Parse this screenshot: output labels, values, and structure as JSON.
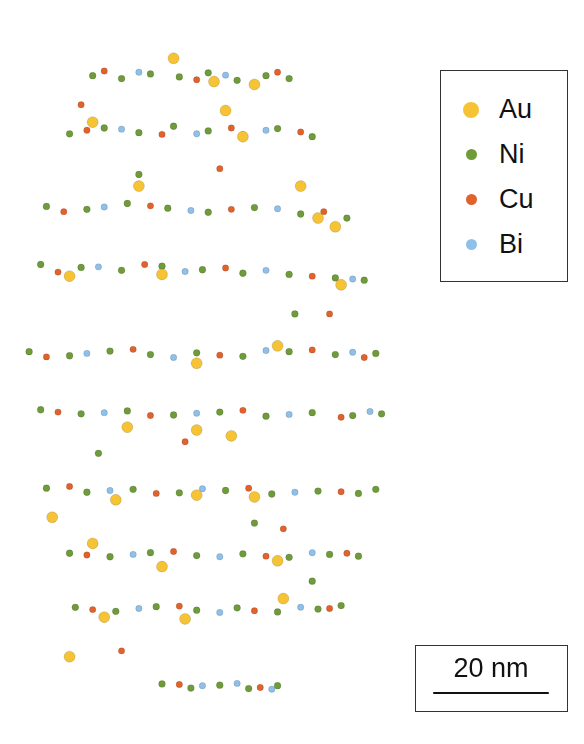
{
  "chart_data": {
    "type": "scatter",
    "xlim": [
      -3,
      96
    ],
    "ylim": [
      -7,
      119
    ],
    "grid": false,
    "tick_labels": false,
    "legend": "upper right",
    "scale_bar": {
      "length": 20,
      "label": "20 nm"
    },
    "series": [
      {
        "name": "Au",
        "color": "#f5c334",
        "values": [
          [
            26,
            110
          ],
          [
            33,
            106
          ],
          [
            40,
            105.5
          ],
          [
            12,
            99
          ],
          [
            38,
            96.5
          ],
          [
            35,
            101
          ],
          [
            20,
            88
          ],
          [
            48,
            88
          ],
          [
            51,
            82.5
          ],
          [
            54,
            81
          ],
          [
            8,
            72.5
          ],
          [
            24,
            72.8
          ],
          [
            55,
            71
          ],
          [
            44,
            60.5
          ],
          [
            30,
            57.5
          ],
          [
            18,
            46.5
          ],
          [
            30,
            46
          ],
          [
            36,
            45
          ],
          [
            16,
            34
          ],
          [
            30,
            34.8
          ],
          [
            40,
            34.5
          ],
          [
            5,
            31
          ],
          [
            12,
            26.5
          ],
          [
            24,
            22.5
          ],
          [
            44,
            23.5
          ],
          [
            14,
            13.8
          ],
          [
            28,
            13.5
          ],
          [
            45,
            17
          ],
          [
            8,
            7
          ]
        ]
      },
      {
        "name": "Ni",
        "color": "#6f9b3a",
        "values": [
          [
            12,
            107
          ],
          [
            17,
            106.5
          ],
          [
            22,
            107.3
          ],
          [
            27,
            106.8
          ],
          [
            32,
            107.5
          ],
          [
            37,
            106.2
          ],
          [
            42,
            107
          ],
          [
            46,
            106.5
          ],
          [
            8,
            97
          ],
          [
            14,
            98
          ],
          [
            20,
            97.2
          ],
          [
            26,
            98.3
          ],
          [
            32,
            97.5
          ],
          [
            38,
            96.8
          ],
          [
            44,
            97.9
          ],
          [
            50,
            96.5
          ],
          [
            4,
            84.5
          ],
          [
            11,
            84
          ],
          [
            18,
            85
          ],
          [
            25,
            84.2
          ],
          [
            32,
            83.5
          ],
          [
            40,
            84.3
          ],
          [
            48,
            83.2
          ],
          [
            56,
            82.5
          ],
          [
            3,
            74.5
          ],
          [
            10,
            74
          ],
          [
            17,
            73.5
          ],
          [
            24,
            74.2
          ],
          [
            31,
            73.6
          ],
          [
            38,
            73
          ],
          [
            46,
            72.8
          ],
          [
            54,
            72.2
          ],
          [
            59,
            71.8
          ],
          [
            1,
            59.5
          ],
          [
            8,
            58.8
          ],
          [
            15,
            59.6
          ],
          [
            22,
            59
          ],
          [
            30,
            59.3
          ],
          [
            38,
            58.7
          ],
          [
            46,
            59.5
          ],
          [
            54,
            59
          ],
          [
            61,
            59.2
          ],
          [
            3,
            49.5
          ],
          [
            10,
            48.8
          ],
          [
            18,
            49.3
          ],
          [
            26,
            48.6
          ],
          [
            34,
            49.1
          ],
          [
            42,
            48.4
          ],
          [
            50,
            49
          ],
          [
            57,
            48.5
          ],
          [
            62,
            48.8
          ],
          [
            4,
            36
          ],
          [
            11,
            35.3
          ],
          [
            19,
            35.8
          ],
          [
            27,
            35.2
          ],
          [
            35,
            35.6
          ],
          [
            43,
            35
          ],
          [
            51,
            35.5
          ],
          [
            58,
            35.1
          ],
          [
            61,
            35.8
          ],
          [
            8,
            24.8
          ],
          [
            15,
            24.2
          ],
          [
            22,
            24.9
          ],
          [
            30,
            24.4
          ],
          [
            38,
            24.7
          ],
          [
            46,
            24.1
          ],
          [
            53,
            24.6
          ],
          [
            58,
            24.3
          ],
          [
            9,
            15.5
          ],
          [
            16,
            14.8
          ],
          [
            23,
            15.6
          ],
          [
            30,
            15
          ],
          [
            37,
            15.4
          ],
          [
            44,
            14.7
          ],
          [
            51,
            15.2
          ],
          [
            55,
            15.8
          ],
          [
            24,
            2.3
          ],
          [
            29,
            1.6
          ],
          [
            34,
            2.1
          ],
          [
            39,
            1.5
          ],
          [
            44,
            2
          ],
          [
            20,
            90
          ],
          [
            47,
            66
          ],
          [
            13,
            42
          ],
          [
            40,
            30
          ],
          [
            50,
            20
          ]
        ]
      },
      {
        "name": "Cu",
        "color": "#e2622b",
        "values": [
          [
            14,
            107.8
          ],
          [
            30,
            106.3
          ],
          [
            44,
            107.6
          ],
          [
            11,
            97.6
          ],
          [
            24,
            96.9
          ],
          [
            36,
            98
          ],
          [
            48,
            97.3
          ],
          [
            7,
            83.6
          ],
          [
            22,
            84.6
          ],
          [
            36,
            84
          ],
          [
            52,
            83.6
          ],
          [
            6,
            73.2
          ],
          [
            21,
            74.5
          ],
          [
            35,
            73.9
          ],
          [
            50,
            72.5
          ],
          [
            4,
            58.6
          ],
          [
            19,
            59.9
          ],
          [
            34,
            58.9
          ],
          [
            50,
            59.8
          ],
          [
            59,
            58.5
          ],
          [
            6,
            49.1
          ],
          [
            22,
            48.5
          ],
          [
            38,
            49.4
          ],
          [
            55,
            48.2
          ],
          [
            8,
            36.3
          ],
          [
            23,
            35.1
          ],
          [
            39,
            36
          ],
          [
            55,
            35.4
          ],
          [
            11,
            24.5
          ],
          [
            26,
            25.1
          ],
          [
            42,
            24.3
          ],
          [
            56,
            24.8
          ],
          [
            12,
            15.1
          ],
          [
            27,
            15.7
          ],
          [
            40,
            14.9
          ],
          [
            53,
            15.3
          ],
          [
            27,
            2.2
          ],
          [
            41,
            1.7
          ],
          [
            10,
            102
          ],
          [
            34,
            91
          ],
          [
            53,
            66
          ],
          [
            28,
            44
          ],
          [
            45,
            29
          ],
          [
            17,
            8
          ]
        ]
      },
      {
        "name": "Bi",
        "color": "#8fc0ea",
        "values": [
          [
            20,
            107.6
          ],
          [
            35,
            107.1
          ],
          [
            17,
            97.8
          ],
          [
            30,
            97
          ],
          [
            42,
            97.6
          ],
          [
            14,
            84.4
          ],
          [
            29,
            83.8
          ],
          [
            44,
            84.1
          ],
          [
            13,
            74.1
          ],
          [
            28,
            73.3
          ],
          [
            42,
            73.5
          ],
          [
            57,
            72
          ],
          [
            11,
            59.2
          ],
          [
            26,
            58.5
          ],
          [
            42,
            59.7
          ],
          [
            57,
            59.4
          ],
          [
            14,
            49
          ],
          [
            30,
            48.9
          ],
          [
            46,
            48.7
          ],
          [
            60,
            49.2
          ],
          [
            15,
            35.6
          ],
          [
            31,
            35.9
          ],
          [
            47,
            35.3
          ],
          [
            19,
            24.6
          ],
          [
            34,
            24.2
          ],
          [
            50,
            24.9
          ],
          [
            20,
            15.3
          ],
          [
            34,
            14.6
          ],
          [
            48,
            15.5
          ],
          [
            31,
            2
          ],
          [
            37,
            2.4
          ],
          [
            43,
            1.4
          ]
        ]
      }
    ]
  }
}
